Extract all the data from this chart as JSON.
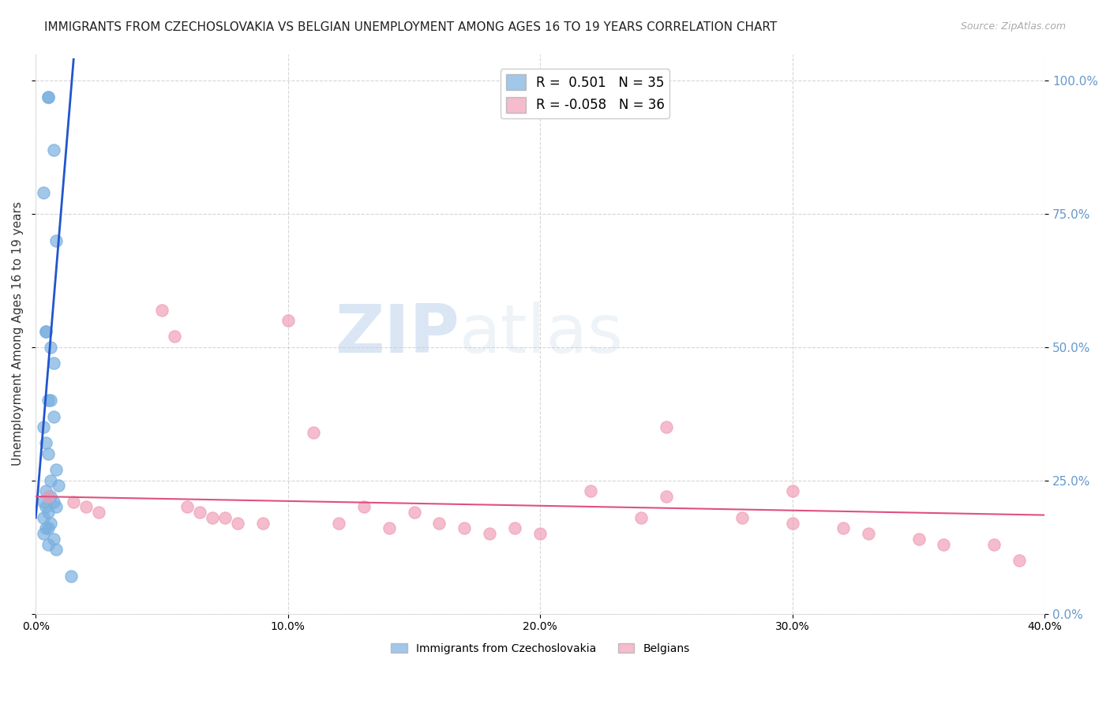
{
  "title": "IMMIGRANTS FROM CZECHOSLOVAKIA VS BELGIAN UNEMPLOYMENT AMONG AGES 16 TO 19 YEARS CORRELATION CHART",
  "source": "Source: ZipAtlas.com",
  "ylabel": "Unemployment Among Ages 16 to 19 years",
  "watermark_zip": "ZIP",
  "watermark_atlas": "atlas",
  "blue_r": "0.501",
  "blue_n": "35",
  "pink_r": "-0.058",
  "pink_n": "36",
  "xlim": [
    0.0,
    0.4
  ],
  "ylim": [
    0.0,
    1.05
  ],
  "yticks": [
    0.0,
    0.25,
    0.5,
    0.75,
    1.0
  ],
  "xticks": [
    0.0,
    0.1,
    0.2,
    0.3,
    0.4
  ],
  "blue_scatter_x": [
    0.005,
    0.005,
    0.007,
    0.008,
    0.003,
    0.004,
    0.004,
    0.006,
    0.007,
    0.005,
    0.006,
    0.007,
    0.003,
    0.004,
    0.005,
    0.008,
    0.006,
    0.009,
    0.004,
    0.005,
    0.006,
    0.003,
    0.007,
    0.008,
    0.004,
    0.005,
    0.003,
    0.006,
    0.004,
    0.005,
    0.003,
    0.007,
    0.005,
    0.008,
    0.014
  ],
  "blue_scatter_y": [
    0.97,
    0.97,
    0.87,
    0.7,
    0.79,
    0.53,
    0.53,
    0.5,
    0.47,
    0.4,
    0.4,
    0.37,
    0.35,
    0.32,
    0.3,
    0.27,
    0.25,
    0.24,
    0.23,
    0.22,
    0.22,
    0.21,
    0.21,
    0.2,
    0.2,
    0.19,
    0.18,
    0.17,
    0.16,
    0.16,
    0.15,
    0.14,
    0.13,
    0.12,
    0.07
  ],
  "pink_scatter_x": [
    0.005,
    0.015,
    0.02,
    0.025,
    0.05,
    0.055,
    0.06,
    0.065,
    0.07,
    0.075,
    0.08,
    0.09,
    0.1,
    0.11,
    0.12,
    0.13,
    0.14,
    0.15,
    0.16,
    0.17,
    0.18,
    0.19,
    0.2,
    0.22,
    0.24,
    0.25,
    0.28,
    0.3,
    0.32,
    0.33,
    0.35,
    0.36,
    0.38,
    0.39,
    0.25,
    0.3
  ],
  "pink_scatter_y": [
    0.22,
    0.21,
    0.2,
    0.19,
    0.57,
    0.52,
    0.2,
    0.19,
    0.18,
    0.18,
    0.17,
    0.17,
    0.55,
    0.34,
    0.17,
    0.2,
    0.16,
    0.19,
    0.17,
    0.16,
    0.15,
    0.16,
    0.15,
    0.23,
    0.18,
    0.35,
    0.18,
    0.17,
    0.16,
    0.15,
    0.14,
    0.13,
    0.13,
    0.1,
    0.22,
    0.23
  ],
  "blue_line_x": [
    0.0,
    0.015
  ],
  "blue_line_y": [
    0.18,
    1.04
  ],
  "pink_line_x": [
    0.0,
    0.4
  ],
  "pink_line_y": [
    0.22,
    0.185
  ],
  "blue_color": "#7ab0e0",
  "pink_color": "#f0a0b8",
  "blue_line_color": "#2255cc",
  "pink_line_color": "#e05080",
  "background_color": "#ffffff",
  "grid_color": "#cccccc",
  "right_axis_color": "#6699cc",
  "title_fontsize": 11,
  "axis_label_fontsize": 11,
  "tick_fontsize": 10
}
